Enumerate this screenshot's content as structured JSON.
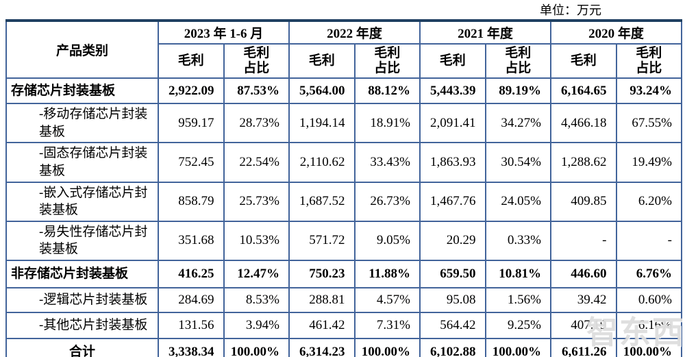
{
  "unit_label": "单位：万元",
  "watermark": "智东西",
  "table": {
    "category_header": "产品类别",
    "gross_label": "毛利",
    "ratio_label": "毛利\n占比",
    "year_groups": [
      {
        "label": "2023 年 1-6 月"
      },
      {
        "label": "2022 年度"
      },
      {
        "label": "2021 年度"
      },
      {
        "label": "2020 年度"
      }
    ],
    "rows": [
      {
        "label": "存储芯片封装基板",
        "style": "group",
        "values": [
          "2,922.09",
          "87.53%",
          "5,564.00",
          "88.12%",
          "5,443.39",
          "89.19%",
          "6,164.65",
          "93.24%"
        ]
      },
      {
        "label": "-移动存储芯片封装基板",
        "style": "sub",
        "values": [
          "959.17",
          "28.73%",
          "1,194.14",
          "18.91%",
          "2,091.41",
          "34.27%",
          "4,466.18",
          "67.55%"
        ]
      },
      {
        "label": "-固态存储芯片封装基板",
        "style": "sub",
        "values": [
          "752.45",
          "22.54%",
          "2,110.62",
          "33.43%",
          "1,863.93",
          "30.54%",
          "1,288.62",
          "19.49%"
        ]
      },
      {
        "label": "-嵌入式存储芯片封装基板",
        "style": "sub",
        "values": [
          "858.79",
          "25.73%",
          "1,687.52",
          "26.73%",
          "1,467.76",
          "24.05%",
          "409.85",
          "6.20%"
        ]
      },
      {
        "label": "-易失性存储芯片封装基板",
        "style": "sub",
        "values": [
          "351.68",
          "10.53%",
          "571.72",
          "9.05%",
          "20.29",
          "0.33%",
          "-",
          "-"
        ]
      },
      {
        "label": "非存储芯片封装基板",
        "style": "group",
        "values": [
          "416.25",
          "12.47%",
          "750.23",
          "11.88%",
          "659.50",
          "10.81%",
          "446.60",
          "6.76%"
        ]
      },
      {
        "label": "-逻辑芯片封装基板",
        "style": "sub",
        "values": [
          "284.69",
          "8.53%",
          "288.81",
          "4.57%",
          "95.08",
          "1.56%",
          "39.42",
          "0.60%"
        ]
      },
      {
        "label": "-其他芯片封装基板",
        "style": "sub",
        "values": [
          "131.56",
          "3.94%",
          "461.42",
          "7.31%",
          "564.42",
          "9.25%",
          "407.19",
          "6.16%"
        ]
      },
      {
        "label": "合计",
        "style": "total",
        "values": [
          "3,338.34",
          "100.00%",
          "6,314.23",
          "100.00%",
          "6,102.88",
          "100.00%",
          "6,611.26",
          "100.00%"
        ]
      }
    ]
  }
}
